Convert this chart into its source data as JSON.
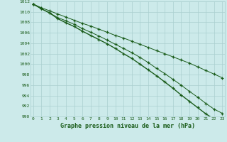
{
  "title": "Graphe pression niveau de la mer (hPa)",
  "x_hours": [
    0,
    1,
    2,
    3,
    4,
    5,
    6,
    7,
    8,
    9,
    10,
    11,
    12,
    13,
    14,
    15,
    16,
    17,
    18,
    19,
    20,
    21,
    22,
    23
  ],
  "line1": [
    1011.5,
    1010.8,
    1010.2,
    1009.6,
    1009.0,
    1008.4,
    1007.8,
    1007.3,
    1006.7,
    1006.1,
    1005.5,
    1005.0,
    1004.4,
    1003.8,
    1003.2,
    1002.6,
    1002.0,
    1001.4,
    1000.8,
    1000.2,
    999.5,
    998.8,
    998.1,
    997.4
  ],
  "line2": [
    1011.5,
    1010.6,
    1009.8,
    1008.9,
    1008.3,
    1007.6,
    1006.8,
    1006.1,
    1005.4,
    1004.6,
    1003.8,
    1003.0,
    1002.2,
    1001.3,
    1000.3,
    999.2,
    998.2,
    997.1,
    996.0,
    994.8,
    993.7,
    992.5,
    991.4,
    990.6
  ],
  "line3": [
    1011.5,
    1010.6,
    1009.8,
    1008.7,
    1007.9,
    1007.2,
    1006.3,
    1005.5,
    1004.7,
    1003.9,
    1003.0,
    1002.0,
    1001.1,
    1000.0,
    998.9,
    997.8,
    996.6,
    995.4,
    994.1,
    992.9,
    991.7,
    990.5,
    989.5,
    989.1
  ],
  "line_color": "#1a5c1a",
  "bg_color": "#cceaea",
  "grid_color": "#aacfcf",
  "ylim": [
    990,
    1012
  ],
  "yticks": [
    990,
    992,
    994,
    996,
    998,
    1000,
    1002,
    1004,
    1006,
    1008,
    1010,
    1012
  ],
  "xticks": [
    0,
    1,
    2,
    3,
    4,
    5,
    6,
    7,
    8,
    9,
    10,
    11,
    12,
    13,
    14,
    15,
    16,
    17,
    18,
    19,
    20,
    21,
    22,
    23
  ],
  "xlim": [
    -0.3,
    23.3
  ]
}
